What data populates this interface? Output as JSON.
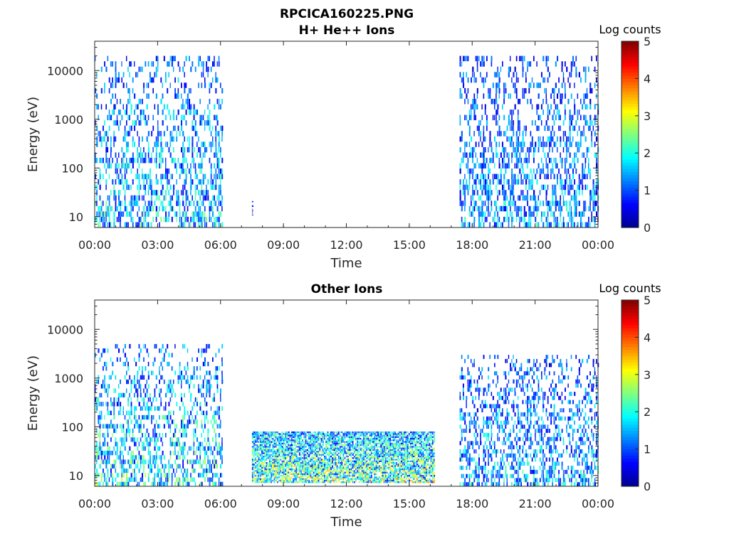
{
  "figure": {
    "filename": "RPCICA160225.PNG"
  },
  "colorscale": {
    "label": "Log counts",
    "range": [
      0,
      5
    ],
    "ticks": [
      "0",
      "1",
      "2",
      "3",
      "4",
      "5"
    ],
    "colormap": [
      "#00008f",
      "#0000ff",
      "#0080ff",
      "#00ffff",
      "#80ff80",
      "#ffff00",
      "#ff8000",
      "#ff0000",
      "#800000"
    ]
  },
  "chart_data": [
    {
      "type": "heatmap",
      "title": "H+ He++ Ions",
      "xlabel": "Time",
      "ylabel": "Energy (eV)",
      "xticks": [
        "00:00",
        "03:00",
        "06:00",
        "09:00",
        "12:00",
        "15:00",
        "18:00",
        "21:00",
        "00:00"
      ],
      "xlim_hours": [
        0,
        24
      ],
      "yscale": "log",
      "ylim": [
        6,
        40000
      ],
      "yticks": [
        "10",
        "100",
        "1000",
        "10000"
      ],
      "activity": [
        {
          "start_h": 0.0,
          "end_h": 6.1,
          "emin": 6,
          "emax": 20000,
          "level": 1.6
        },
        {
          "start_h": 7.5,
          "end_h": 7.55,
          "emin": 10,
          "emax": 22,
          "level": 0.7
        },
        {
          "start_h": 17.4,
          "end_h": 24.0,
          "emin": 6,
          "emax": 20000,
          "level": 1.4
        }
      ]
    },
    {
      "type": "heatmap",
      "title": "Other Ions",
      "xlabel": "Time",
      "ylabel": "Energy (eV)",
      "xticks": [
        "00:00",
        "03:00",
        "06:00",
        "09:00",
        "12:00",
        "15:00",
        "18:00",
        "21:00",
        "00:00"
      ],
      "xlim_hours": [
        0,
        24
      ],
      "yscale": "log",
      "ylim": [
        6,
        40000
      ],
      "yticks": [
        "10",
        "100",
        "1000",
        "10000"
      ],
      "activity": [
        {
          "start_h": 0.0,
          "end_h": 6.1,
          "emin": 6,
          "emax": 5000,
          "level": 1.8
        },
        {
          "start_h": 7.5,
          "end_h": 16.2,
          "emin": 7,
          "emax": 80,
          "level": 2.3
        },
        {
          "start_h": 17.4,
          "end_h": 24.0,
          "emin": 6,
          "emax": 3000,
          "level": 1.5
        }
      ]
    }
  ]
}
